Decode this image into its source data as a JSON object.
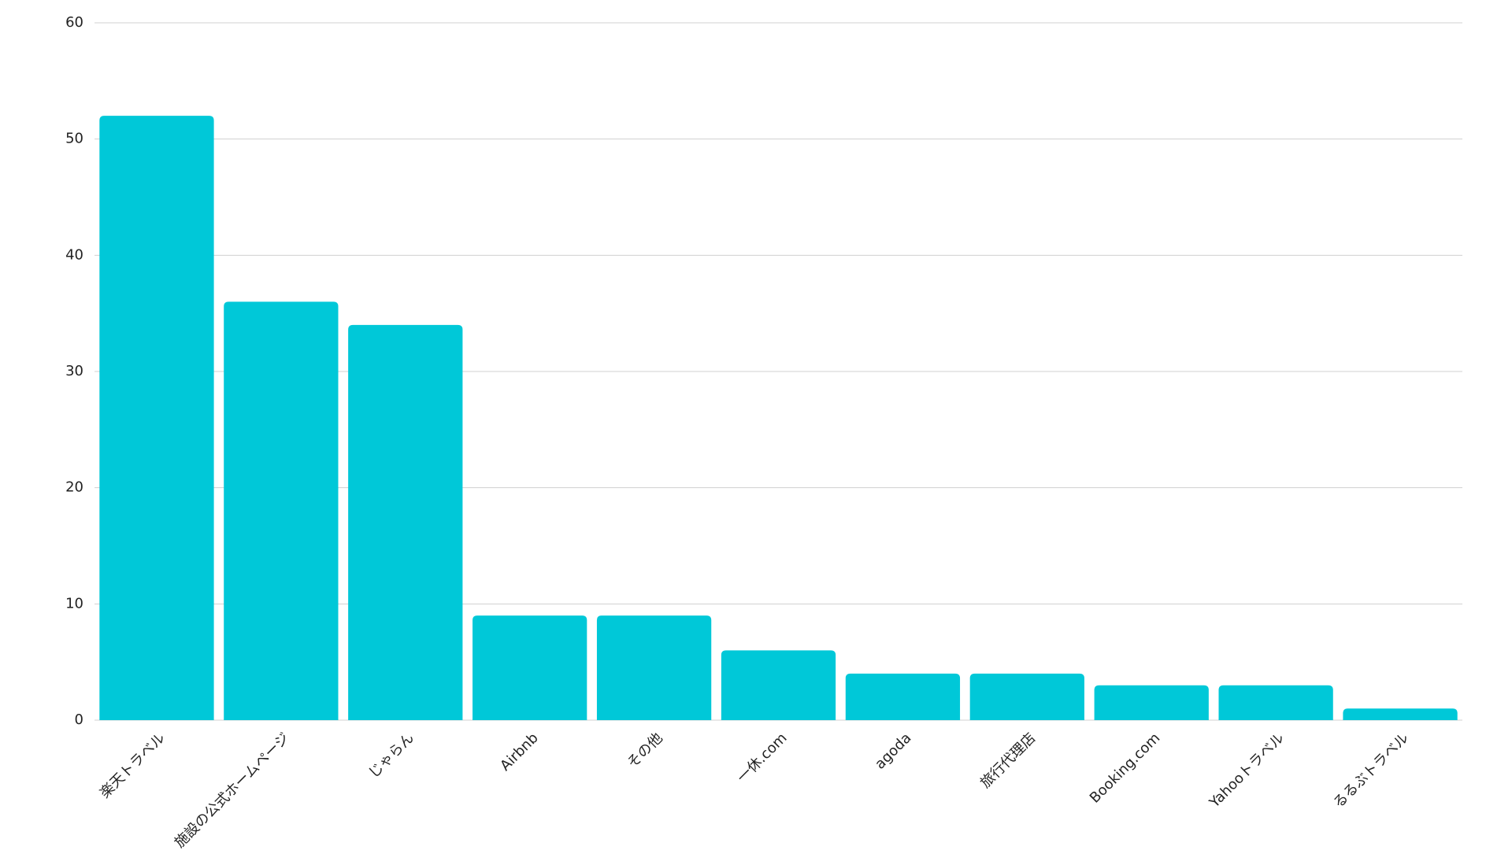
{
  "chart_data": {
    "type": "bar",
    "categories": [
      "楽天トラベル",
      "施設の公式ホームページ",
      "じゃらん",
      "Airbnb",
      "その他",
      "一休.com",
      "agoda",
      "旅行代理店",
      "Booking.com",
      "Yahooトラベル",
      "るるぶトラベル"
    ],
    "values": [
      52,
      36,
      34,
      9,
      9,
      6,
      4,
      4,
      3,
      3,
      1
    ],
    "color": "#00c8d8",
    "ylim": [
      0,
      60
    ],
    "yticks": [
      0,
      10,
      20,
      30,
      40,
      50,
      60
    ],
    "grid": true
  }
}
